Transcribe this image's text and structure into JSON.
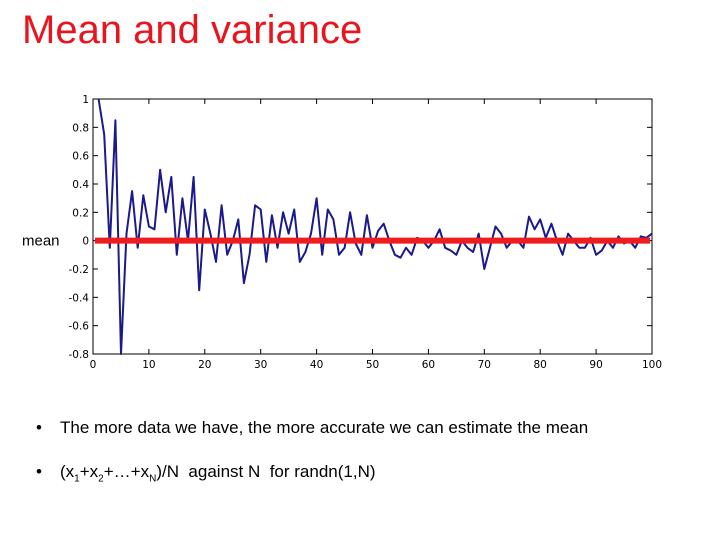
{
  "slide": {
    "title": "Mean and variance",
    "bullets": [
      "The more data we have, the more accurate we can estimate the mean",
      "(x1+x2+…+xN)/N against N for randn(1,N)"
    ],
    "bullet2_parts": {
      "a": "(x",
      "s1": "1",
      "b": "+x",
      "s2": "2",
      "c": "+…+x",
      "sN": "N",
      "d": ")/N  against N  for randn(1,N)"
    }
  },
  "colors": {
    "title": "#e8141e",
    "series": "#1a1a8c",
    "mean_line": "#ee1c1c"
  },
  "chart_data": {
    "type": "line",
    "title": "",
    "xlabel": "",
    "ylabel": "",
    "xlim": [
      0,
      100
    ],
    "ylim": [
      -0.8,
      1
    ],
    "xticks": [
      0,
      10,
      20,
      30,
      40,
      50,
      60,
      70,
      80,
      90,
      100
    ],
    "yticks": [
      -0.8,
      -0.6,
      -0.4,
      -0.2,
      0,
      0.2,
      0.4,
      0.6,
      0.8,
      1
    ],
    "ytick_labels": [
      "-0.8",
      "-0.6",
      "-0.4",
      "-0.2",
      "0",
      "0.2",
      "0.4",
      "0.6",
      "0.8",
      "1"
    ],
    "xtick_labels": [
      "0",
      "10",
      "20",
      "30",
      "40",
      "50",
      "60",
      "70",
      "80",
      "90",
      "100"
    ],
    "grid": false,
    "annotation": "mean",
    "mean_value": 0,
    "series": [
      {
        "x": [
          1,
          2,
          3,
          4,
          5,
          6,
          7,
          8,
          9,
          10,
          11,
          12,
          13,
          14,
          15,
          16,
          17,
          18,
          19,
          20,
          21,
          22,
          23,
          24,
          25,
          26,
          27,
          28,
          29,
          30,
          31,
          32,
          33,
          34,
          35,
          36,
          37,
          38,
          39,
          40,
          41,
          42,
          43,
          44,
          45,
          46,
          47,
          48,
          49,
          50,
          51,
          52,
          53,
          54,
          55,
          56,
          57,
          58,
          59,
          60,
          61,
          62,
          63,
          64,
          65,
          66,
          67,
          68,
          69,
          70,
          71,
          72,
          73,
          74,
          75,
          76,
          77,
          78,
          79,
          80,
          81,
          82,
          83,
          84,
          85,
          86,
          87,
          88,
          89,
          90,
          91,
          92,
          93,
          94,
          95,
          96,
          97,
          98,
          99,
          100
        ],
        "values": [
          1.0,
          0.75,
          -0.05,
          0.85,
          -0.8,
          0.05,
          0.35,
          -0.05,
          0.32,
          0.1,
          0.08,
          0.5,
          0.2,
          0.45,
          -0.1,
          0.3,
          0.0,
          0.45,
          -0.35,
          0.22,
          0.05,
          -0.15,
          0.25,
          -0.1,
          0.0,
          0.15,
          -0.3,
          -0.1,
          0.25,
          0.22,
          -0.15,
          0.18,
          -0.05,
          0.2,
          0.05,
          0.22,
          -0.15,
          -0.08,
          0.05,
          0.3,
          -0.1,
          0.22,
          0.15,
          -0.1,
          -0.05,
          0.2,
          -0.02,
          -0.1,
          0.18,
          -0.05,
          0.07,
          0.12,
          0.0,
          -0.1,
          -0.12,
          -0.05,
          -0.1,
          0.02,
          0.0,
          -0.05,
          0.0,
          0.08,
          -0.05,
          -0.07,
          -0.1,
          0.0,
          -0.05,
          -0.08,
          0.05,
          -0.2,
          -0.05,
          0.1,
          0.05,
          -0.05,
          0.0,
          0.0,
          -0.05,
          0.17,
          0.08,
          0.15,
          0.02,
          0.12,
          0.0,
          -0.1,
          0.05,
          0.0,
          -0.05,
          -0.05,
          0.02,
          -0.1,
          -0.07,
          0.0,
          -0.05,
          0.03,
          -0.02,
          0.0,
          -0.05,
          0.03,
          0.02,
          0.05
        ]
      }
    ]
  }
}
